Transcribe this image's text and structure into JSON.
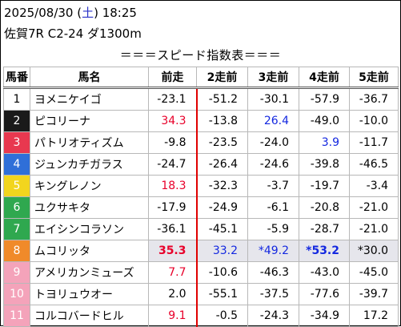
{
  "header": {
    "date_prefix": "2025/08/30 (",
    "weekday": "土",
    "date_suffix": ") 18:25",
    "race": "佐賀7R C2-24 ダ1300m",
    "title": "＝＝＝スピード指数表＝＝＝"
  },
  "columns": [
    "馬番",
    "馬名",
    "前走",
    "2走前",
    "3走前",
    "4走前",
    "5走前"
  ],
  "colors": {
    "frame_1": "#ffffff",
    "frame_2": "#1a1a1a",
    "frame_3": "#e8384f",
    "frame_4": "#2f6fd8",
    "frame_5": "#f2d51e",
    "frame_6": "#2fa84f",
    "frame_7": "#f08a2a",
    "frame_8": "#f4a3ba",
    "red": "#e8002a",
    "blue": "#1428e0"
  },
  "rows": [
    {
      "no": "1",
      "frame": "#ffffff",
      "text": "#000000",
      "name": "ヨメニケイゴ",
      "v": [
        "-23.1",
        "-51.2",
        "-30.1",
        "-57.9",
        "-36.7"
      ],
      "s": [
        "",
        "",
        "",
        "",
        ""
      ]
    },
    {
      "no": "2",
      "frame": "#1a1a1a",
      "text": "#ffffff",
      "name": "ピコリーナ",
      "v": [
        "34.3",
        "-13.8",
        "26.4",
        "-49.0",
        "-10.0"
      ],
      "s": [
        "red",
        "",
        "blue",
        "",
        ""
      ]
    },
    {
      "no": "3",
      "frame": "#e8384f",
      "text": "#ffffff",
      "name": "パトリオティズム",
      "v": [
        "-9.8",
        "-23.5",
        "-24.0",
        "3.9",
        "-11.7"
      ],
      "s": [
        "",
        "",
        "",
        "blue",
        ""
      ]
    },
    {
      "no": "4",
      "frame": "#2f6fd8",
      "text": "#ffffff",
      "name": "ジュンカチガラス",
      "v": [
        "-24.7",
        "-26.4",
        "-24.6",
        "-39.8",
        "-46.5"
      ],
      "s": [
        "",
        "",
        "",
        "",
        ""
      ]
    },
    {
      "no": "5",
      "frame": "#f2d51e",
      "text": "#ffffff",
      "name": "キングレノン",
      "v": [
        "18.3",
        "-32.3",
        "-3.7",
        "-19.7",
        "-3.4"
      ],
      "s": [
        "red",
        "",
        "",
        "",
        ""
      ]
    },
    {
      "no": "6",
      "frame": "#2fa84f",
      "text": "#ffffff",
      "name": "ユクサキタ",
      "v": [
        "-17.9",
        "-24.9",
        "-6.1",
        "-20.8",
        "-21.0"
      ],
      "s": [
        "",
        "",
        "",
        "",
        ""
      ]
    },
    {
      "no": "7",
      "frame": "#2fa84f",
      "text": "#ffffff",
      "name": "エイシンコラソン",
      "v": [
        "-36.1",
        "-45.1",
        "-5.9",
        "-28.7",
        "-21.0"
      ],
      "s": [
        "",
        "",
        "",
        "",
        ""
      ]
    },
    {
      "no": "8",
      "frame": "#f08a2a",
      "text": "#ffffff",
      "name": "ムコリッタ",
      "v": [
        "35.3",
        "33.2",
        "*49.2",
        "*53.2",
        "*30.0"
      ],
      "s": [
        "red bold",
        "blue",
        "blue",
        "blue bold",
        ""
      ],
      "hl": true
    },
    {
      "no": "9",
      "frame": "#f4a3ba",
      "text": "#ffffff",
      "name": "アメリカンミューズ",
      "v": [
        "7.7",
        "-10.6",
        "-46.3",
        "-43.0",
        "-45.0"
      ],
      "s": [
        "red",
        "",
        "",
        "",
        ""
      ]
    },
    {
      "no": "10",
      "frame": "#f4a3ba",
      "text": "#ffffff",
      "name": "トヨリュウオー",
      "v": [
        "2.0",
        "-55.1",
        "-37.5",
        "-77.6",
        "-39.7"
      ],
      "s": [
        "",
        "",
        "",
        "",
        ""
      ]
    },
    {
      "no": "11",
      "frame": "#f4a3ba",
      "text": "#ffffff",
      "name": "コルコバードヒル",
      "v": [
        "9.1",
        "-0.5",
        "-24.3",
        "-34.9",
        "17.2"
      ],
      "s": [
        "red",
        "",
        "",
        "",
        ""
      ]
    }
  ]
}
